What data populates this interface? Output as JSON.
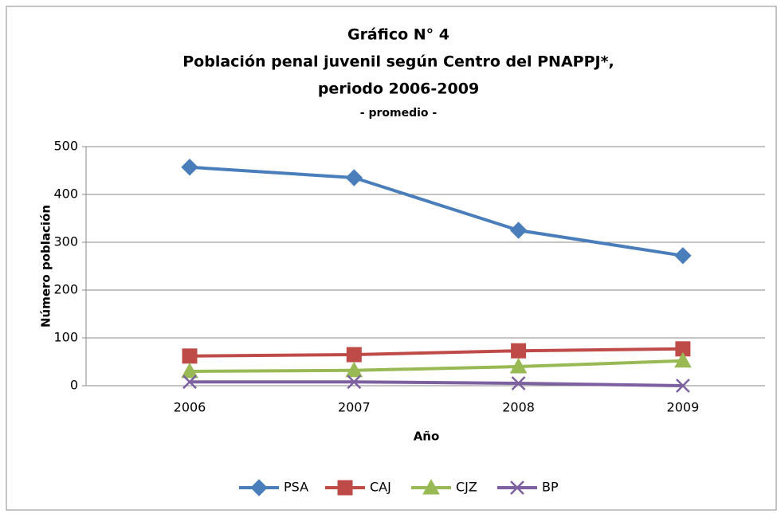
{
  "chart_data": {
    "type": "line",
    "title": [
      "Gráfico N° 4",
      "Población penal juvenil según Centro del PNAPPJ*,",
      "periodo 2006-2009"
    ],
    "subtitle": "- promedio -",
    "x_label": "Año",
    "y_label": "Número población",
    "categories": [
      "2006",
      "2007",
      "2008",
      "2009"
    ],
    "series": [
      {
        "name": "PSA",
        "color": "#4a7ebb",
        "marker": "diamond",
        "values": [
          457,
          435,
          325,
          272
        ]
      },
      {
        "name": "CAJ",
        "color": "#be4b48",
        "marker": "square",
        "values": [
          62,
          65,
          73,
          77
        ]
      },
      {
        "name": "CJZ",
        "color": "#98b954",
        "marker": "triangle",
        "values": [
          30,
          32,
          40,
          52
        ]
      },
      {
        "name": "BP",
        "color": "#7d60a0",
        "marker": "x",
        "values": [
          8,
          8,
          5,
          0
        ]
      }
    ],
    "ylim": [
      0,
      500
    ],
    "yticks": [
      0,
      100,
      200,
      300,
      400,
      500
    ],
    "grid": true,
    "legend": "bottom"
  }
}
